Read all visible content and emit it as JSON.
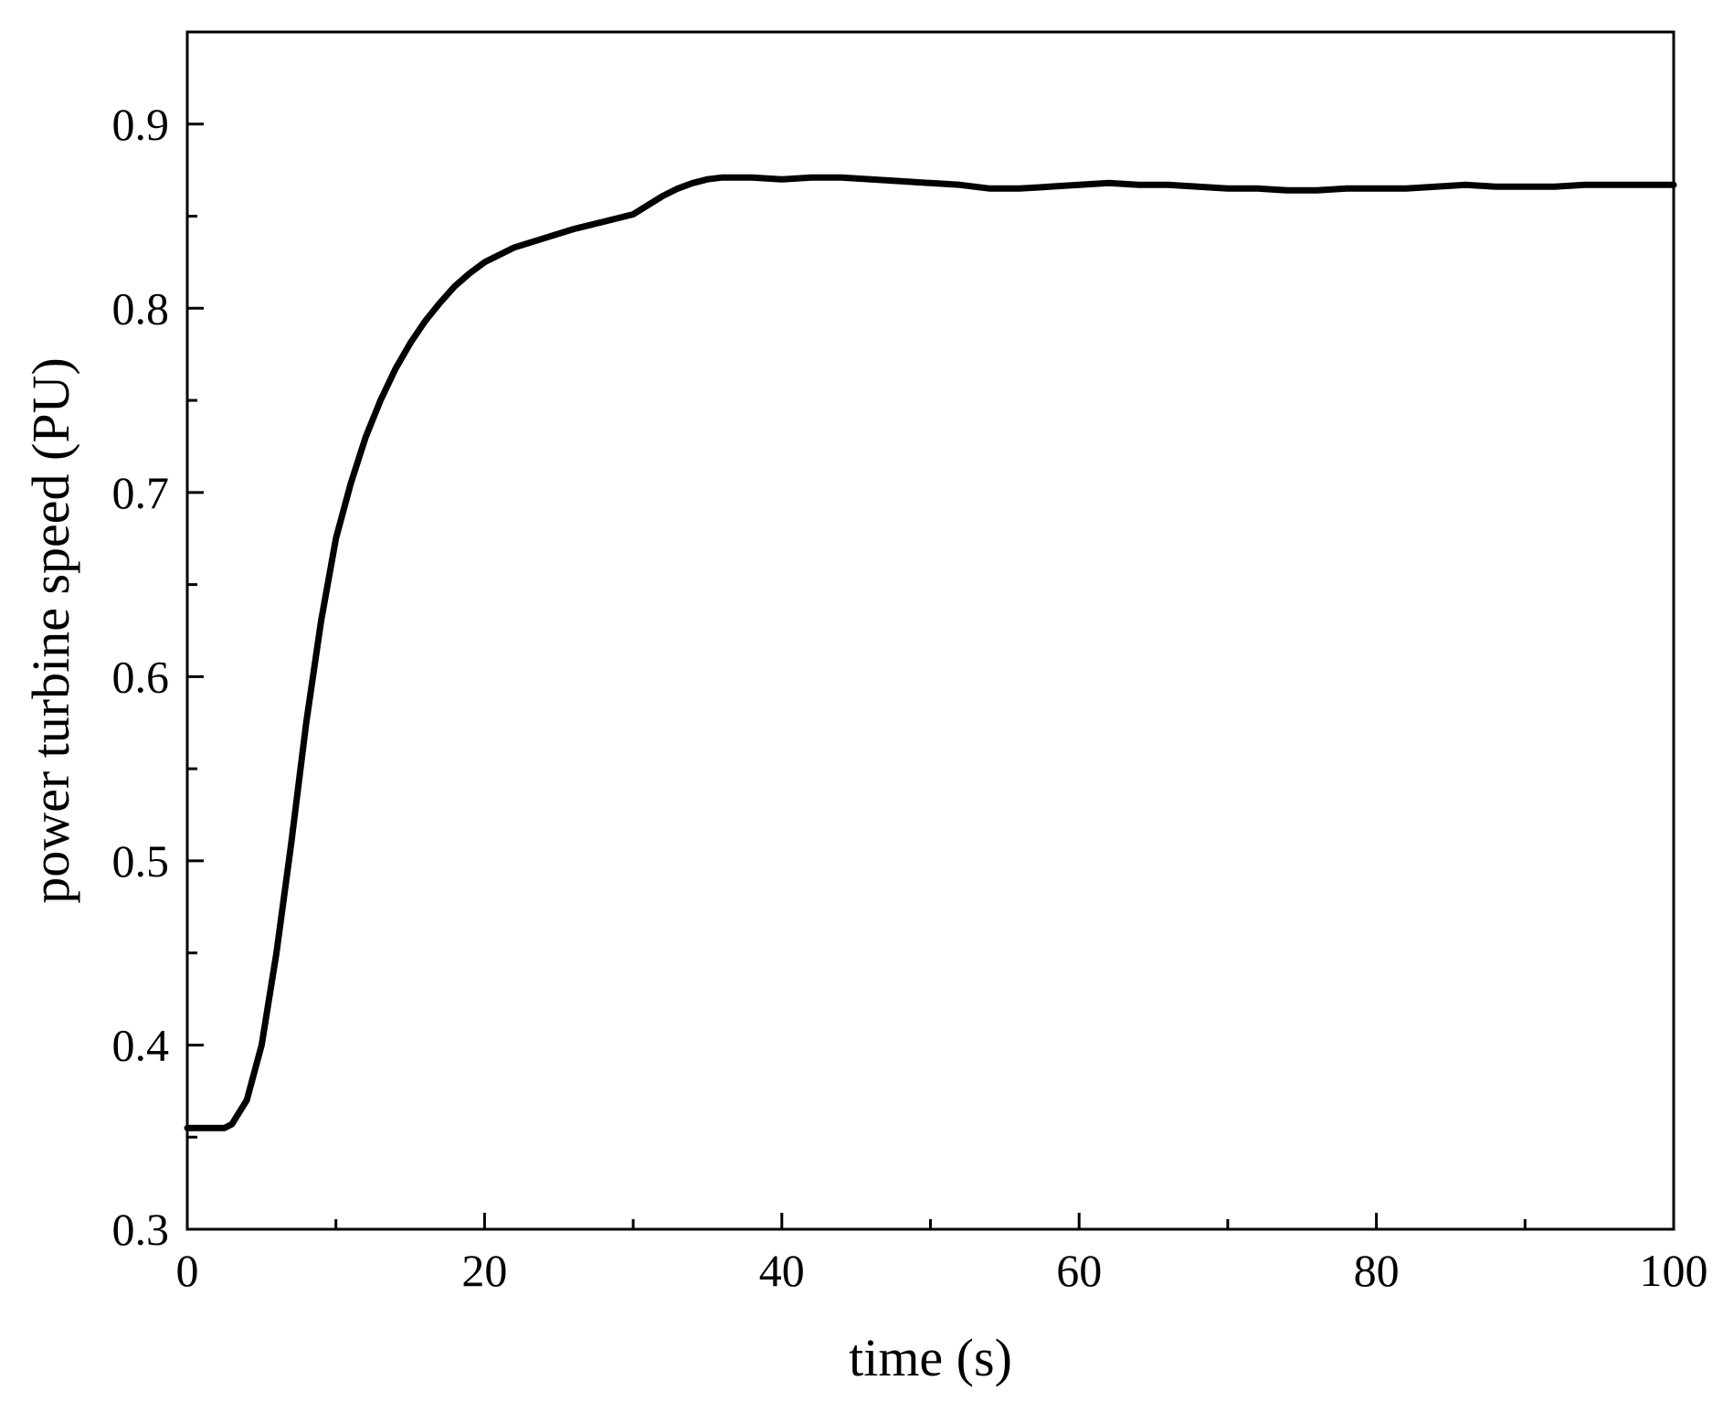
{
  "chart_data": {
    "type": "line",
    "title": "",
    "xlabel": "time (s)",
    "ylabel": "power turbine speed (PU)",
    "xlim": [
      0,
      100
    ],
    "ylim": [
      0.3,
      0.95
    ],
    "xticks": [
      0,
      20,
      40,
      60,
      80,
      100
    ],
    "xtick_labels": [
      "0",
      "20",
      "40",
      "60",
      "80",
      "100"
    ],
    "yticks": [
      0.3,
      0.4,
      0.5,
      0.6,
      0.7,
      0.8,
      0.9
    ],
    "ytick_labels": [
      "0.3",
      "0.4",
      "0.5",
      "0.6",
      "0.7",
      "0.8",
      "0.9"
    ],
    "x_minor_step": 10,
    "y_minor_step": 0.05,
    "grid": false,
    "legend": "none",
    "line_color": "#000000",
    "series": [
      {
        "x": [
          0,
          2.5,
          3,
          4,
          5,
          6,
          7,
          8,
          9,
          10,
          11,
          12,
          13,
          14,
          15,
          16,
          17,
          18,
          19,
          20,
          22,
          24,
          26,
          28,
          30,
          31,
          32,
          33,
          34,
          35,
          36,
          38,
          40,
          42,
          44,
          46,
          48,
          50,
          52,
          54,
          56,
          58,
          60,
          62,
          64,
          66,
          68,
          70,
          72,
          74,
          76,
          78,
          80,
          82,
          84,
          86,
          88,
          90,
          92,
          94,
          96,
          98,
          100
        ],
        "y": [
          0.355,
          0.355,
          0.357,
          0.37,
          0.4,
          0.45,
          0.51,
          0.575,
          0.63,
          0.675,
          0.705,
          0.73,
          0.75,
          0.767,
          0.781,
          0.793,
          0.803,
          0.812,
          0.819,
          0.825,
          0.833,
          0.838,
          0.843,
          0.847,
          0.851,
          0.856,
          0.861,
          0.865,
          0.868,
          0.87,
          0.871,
          0.871,
          0.87,
          0.871,
          0.871,
          0.87,
          0.869,
          0.868,
          0.867,
          0.865,
          0.865,
          0.866,
          0.867,
          0.868,
          0.867,
          0.867,
          0.866,
          0.865,
          0.865,
          0.864,
          0.864,
          0.865,
          0.865,
          0.865,
          0.866,
          0.867,
          0.866,
          0.866,
          0.866,
          0.867,
          0.867,
          0.867,
          0.867
        ]
      }
    ]
  }
}
